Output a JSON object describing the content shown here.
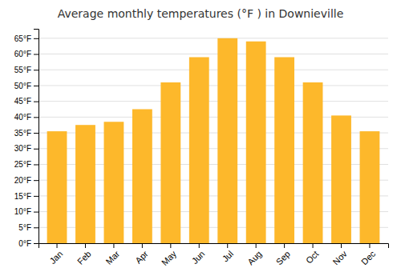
{
  "chart_data": {
    "type": "bar",
    "title": "Average monthly temperatures (°F ) in Downieville",
    "categories": [
      "Jan",
      "Feb",
      "Mar",
      "Apr",
      "May",
      "Jun",
      "Jul",
      "Aug",
      "Sep",
      "Oct",
      "Nov",
      "Dec"
    ],
    "values": [
      35.5,
      37.5,
      38.5,
      42.5,
      51,
      59,
      65,
      64,
      59,
      51,
      40.5,
      35.5
    ],
    "color": "#FDB82B",
    "ylim": [
      0,
      68
    ],
    "yticks": [
      {
        "value": 0,
        "label": "0°F"
      },
      {
        "value": 5,
        "label": "5°F"
      },
      {
        "value": 10,
        "label": "10°F"
      },
      {
        "value": 15,
        "label": "15°F"
      },
      {
        "value": 20,
        "label": "20°F"
      },
      {
        "value": 25,
        "label": "25°F"
      },
      {
        "value": 30,
        "label": "30°F"
      },
      {
        "value": 35,
        "label": "35°F"
      },
      {
        "value": 40,
        "label": "40°F"
      },
      {
        "value": 45,
        "label": "45°F"
      },
      {
        "value": 50,
        "label": "50°F"
      },
      {
        "value": 55,
        "label": "55°F"
      },
      {
        "value": 60,
        "label": "60°F"
      },
      {
        "value": 65,
        "label": "65°F"
      }
    ],
    "grid": true
  }
}
